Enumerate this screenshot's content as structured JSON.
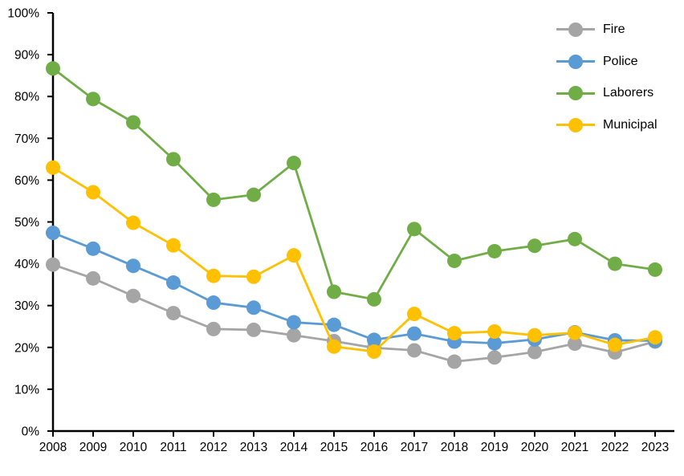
{
  "chart_data": {
    "type": "line",
    "title": "",
    "xlabel": "",
    "ylabel": "",
    "ylim": [
      0,
      100
    ],
    "grid": false,
    "legend_position": "top-right",
    "axis_color": "#000000",
    "text_color": "#000000",
    "background_color": "#ffffff",
    "y_ticks": [
      "0%",
      "10%",
      "20%",
      "30%",
      "40%",
      "50%",
      "60%",
      "70%",
      "80%",
      "90%",
      "100%"
    ],
    "categories": [
      "2008",
      "2009",
      "2010",
      "2011",
      "2012",
      "2013",
      "2014",
      "2015",
      "2016",
      "2017",
      "2018",
      "2019",
      "2020",
      "2021",
      "2022",
      "2023"
    ],
    "series": [
      {
        "name": "Fire",
        "color": "#A5A5A5",
        "values": [
          39.8,
          36.5,
          32.3,
          28.2,
          24.4,
          24.2,
          22.9,
          21.5,
          19.9,
          19.3,
          16.6,
          17.6,
          18.9,
          20.9,
          18.8,
          21.4
        ]
      },
      {
        "name": "Police",
        "color": "#5B9BD5",
        "values": [
          47.4,
          43.6,
          39.5,
          35.5,
          30.7,
          29.5,
          26.0,
          25.4,
          21.8,
          23.3,
          21.4,
          21.0,
          21.9,
          23.6,
          21.7,
          21.6
        ]
      },
      {
        "name": "Laborers",
        "color": "#70AD47",
        "values": [
          86.7,
          79.4,
          73.8,
          65.0,
          55.3,
          56.5,
          64.1,
          33.3,
          31.5,
          48.3,
          40.7,
          43.0,
          44.3,
          45.9,
          40.0,
          38.6
        ]
      },
      {
        "name": "Municipal",
        "color": "#FFC000",
        "values": [
          63.0,
          57.1,
          49.8,
          44.4,
          37.1,
          36.9,
          42.0,
          20.2,
          19.0,
          28.0,
          23.4,
          23.8,
          22.9,
          23.5,
          20.6,
          22.4
        ]
      }
    ]
  }
}
